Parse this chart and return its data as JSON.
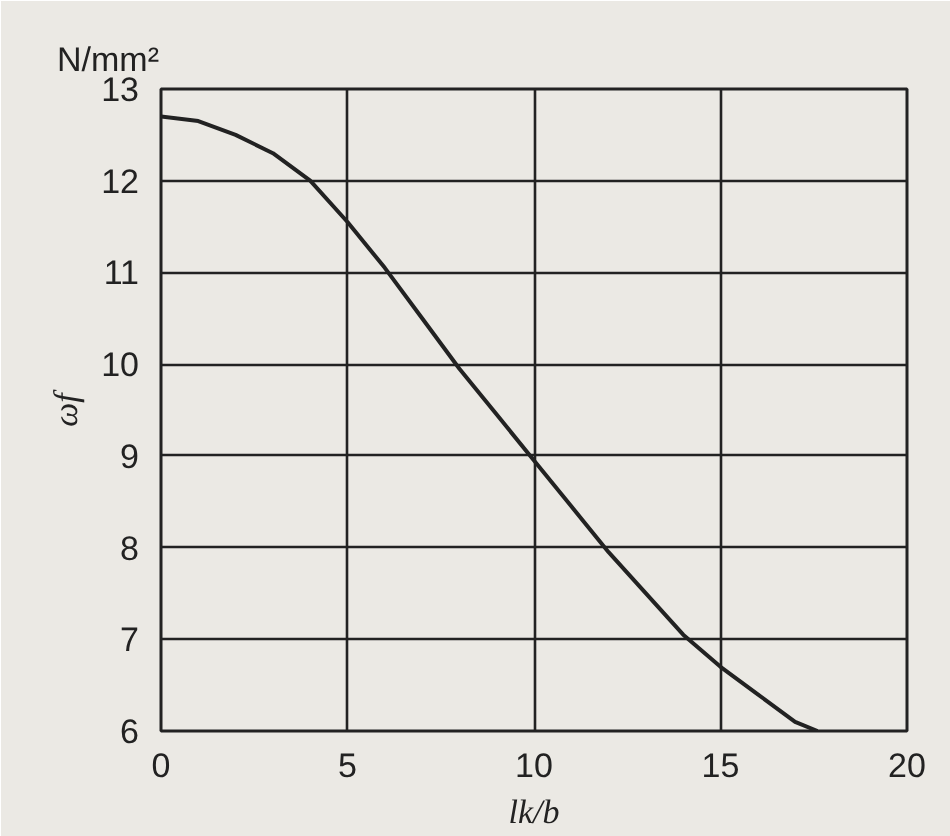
{
  "chart_data": {
    "type": "line",
    "xlabel": "lk/b",
    "ylabel": "ωf",
    "annotations": [
      "N/mm²"
    ],
    "x": [
      0,
      1,
      2,
      3,
      4,
      5,
      6,
      7,
      8,
      9,
      10,
      11,
      12,
      13,
      14,
      15,
      16,
      17,
      17.6
    ],
    "series": [
      {
        "color": "#222222",
        "values": [
          12.7,
          12.65,
          12.5,
          12.3,
          12.0,
          11.55,
          11.05,
          10.5,
          9.95,
          9.45,
          8.95,
          8.45,
          7.95,
          7.5,
          7.05,
          6.7,
          6.4,
          6.1,
          6.0
        ]
      }
    ],
    "xlim": [
      0,
      20
    ],
    "ylim": [
      6,
      13
    ],
    "xticks": [
      0,
      5,
      10,
      15,
      20
    ],
    "yticks": [
      6,
      7,
      8,
      9,
      10,
      11,
      12,
      13
    ],
    "grid": true,
    "marker": "none",
    "line_style": "solid"
  }
}
